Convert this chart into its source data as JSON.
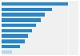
{
  "values": [
    100,
    76,
    65,
    59,
    52,
    46,
    40,
    35,
    27,
    16
  ],
  "bar_colors": [
    "#2887c8",
    "#2887c8",
    "#2887c8",
    "#2887c8",
    "#2887c8",
    "#2887c8",
    "#2887c8",
    "#2887c8",
    "#2887c8",
    "#b8d4ea"
  ],
  "background_color": "#ffffff",
  "plot_bg_color": "#f0f0f0",
  "xlim": [
    0,
    115
  ],
  "grid_color": "#ffffff",
  "bar_height": 0.65
}
